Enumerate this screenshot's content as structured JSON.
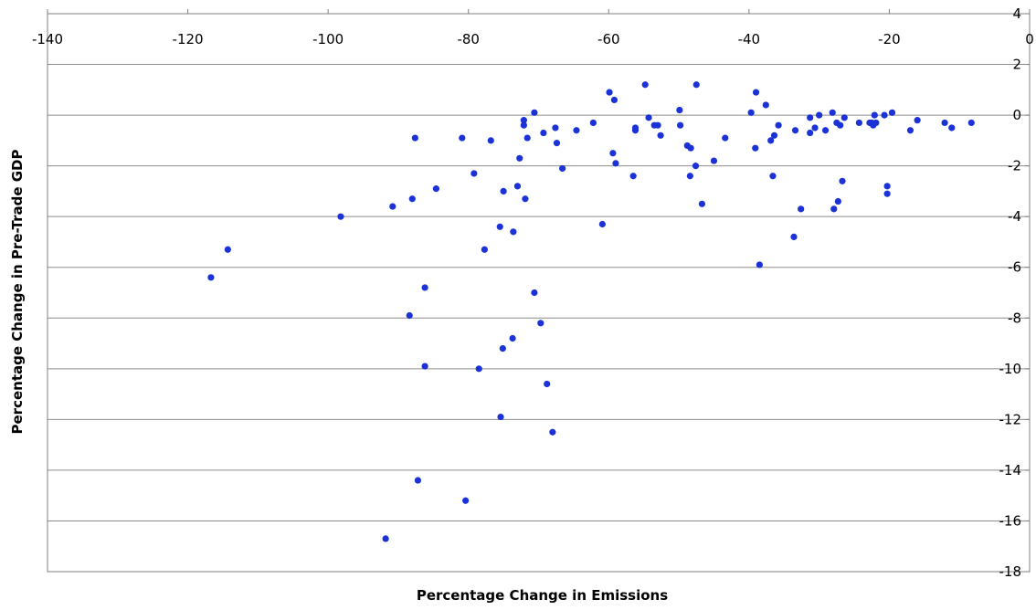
{
  "chart_data": {
    "type": "scatter",
    "title": "",
    "xlabel": "Percentage Change in Emissions",
    "ylabel": "Percentage Change in Pre-Trade GDP",
    "xlim": [
      -140,
      0
    ],
    "ylim": [
      -18,
      4
    ],
    "x_ticks": [
      -140,
      -120,
      -100,
      -80,
      -60,
      -40,
      -20,
      0
    ],
    "y_ticks": [
      4,
      2,
      0,
      -2,
      -4,
      -6,
      -8,
      -10,
      -12,
      -14,
      -16,
      -18
    ],
    "x_tick_labels": [
      "-140",
      "-120",
      "-100",
      "-80",
      "-60",
      "-40",
      "-20",
      "0"
    ],
    "y_tick_labels": [
      "4",
      "2",
      "0",
      "-2",
      "-4",
      "-6",
      "-8",
      "-10",
      "-12",
      "-14",
      "-16",
      "-18"
    ],
    "grid": "horizontal",
    "legend": "none",
    "marker_color": "#1a32d6",
    "series": [
      {
        "points": [
          [
            -116.7,
            -6.4
          ],
          [
            -114.3,
            -5.3
          ],
          [
            -98.2,
            -4.0
          ],
          [
            -91.8,
            -16.7
          ],
          [
            -90.8,
            -3.6
          ],
          [
            -88.4,
            -7.9
          ],
          [
            -88.0,
            -3.3
          ],
          [
            -87.6,
            -0.9
          ],
          [
            -87.2,
            -14.4
          ],
          [
            -86.2,
            -6.8
          ],
          [
            -86.2,
            -9.9
          ],
          [
            -84.6,
            -2.9
          ],
          [
            -80.4,
            -15.2
          ],
          [
            -80.9,
            -0.9
          ],
          [
            -79.2,
            -2.3
          ],
          [
            -78.5,
            -10.0
          ],
          [
            -77.7,
            -5.3
          ],
          [
            -76.8,
            -1.0
          ],
          [
            -75.4,
            -11.9
          ],
          [
            -75.5,
            -4.4
          ],
          [
            -75.1,
            -9.2
          ],
          [
            -75.0,
            -3.0
          ],
          [
            -73.7,
            -8.8
          ],
          [
            -73.6,
            -4.6
          ],
          [
            -73.0,
            -2.8
          ],
          [
            -72.7,
            -1.7
          ],
          [
            -72.1,
            -0.2
          ],
          [
            -72.1,
            -0.4
          ],
          [
            -71.9,
            -3.3
          ],
          [
            -71.6,
            -0.9
          ],
          [
            -70.6,
            0.1
          ],
          [
            -70.6,
            -7.0
          ],
          [
            -69.7,
            -8.2
          ],
          [
            -69.3,
            -0.7
          ],
          [
            -68.8,
            -10.6
          ],
          [
            -68.0,
            -12.5
          ],
          [
            -67.6,
            -0.5
          ],
          [
            -67.4,
            -1.1
          ],
          [
            -66.6,
            -2.1
          ],
          [
            -64.6,
            -0.6
          ],
          [
            -62.2,
            -0.3
          ],
          [
            -60.9,
            -4.3
          ],
          [
            -59.9,
            0.9
          ],
          [
            -59.4,
            -1.5
          ],
          [
            -59.2,
            0.6
          ],
          [
            -59.0,
            -1.9
          ],
          [
            -56.5,
            -2.4
          ],
          [
            -56.2,
            -0.5
          ],
          [
            -56.2,
            -0.6
          ],
          [
            -54.8,
            1.2
          ],
          [
            -54.3,
            -0.1
          ],
          [
            -53.5,
            -0.4
          ],
          [
            -53.0,
            -0.4
          ],
          [
            -52.6,
            -0.8
          ],
          [
            -49.9,
            0.2
          ],
          [
            -49.8,
            -0.4
          ],
          [
            -48.8,
            -1.2
          ],
          [
            -48.4,
            -2.4
          ],
          [
            -48.3,
            -1.3
          ],
          [
            -47.6,
            -2.0
          ],
          [
            -47.5,
            1.2
          ],
          [
            -46.7,
            -3.5
          ],
          [
            -45.0,
            -1.8
          ],
          [
            -43.4,
            -0.9
          ],
          [
            -39.7,
            0.1
          ],
          [
            -39.1,
            -1.3
          ],
          [
            -39.0,
            0.9
          ],
          [
            -38.5,
            -5.9
          ],
          [
            -37.6,
            0.4
          ],
          [
            -36.9,
            -1.0
          ],
          [
            -36.6,
            -2.4
          ],
          [
            -36.4,
            -0.8
          ],
          [
            -35.8,
            -0.4
          ],
          [
            -33.6,
            -4.8
          ],
          [
            -33.4,
            -0.6
          ],
          [
            -32.6,
            -3.7
          ],
          [
            -31.3,
            -0.1
          ],
          [
            -31.3,
            -0.7
          ],
          [
            -30.6,
            -0.5
          ],
          [
            -30.0,
            0.0
          ],
          [
            -29.1,
            -0.6
          ],
          [
            -28.1,
            0.1
          ],
          [
            -27.9,
            -3.7
          ],
          [
            -27.5,
            -0.3
          ],
          [
            -27.3,
            -3.4
          ],
          [
            -27.0,
            -0.4
          ],
          [
            -26.7,
            -2.6
          ],
          [
            -26.4,
            -0.1
          ],
          [
            -24.3,
            -0.3
          ],
          [
            -22.8,
            -0.3
          ],
          [
            -22.5,
            -0.3
          ],
          [
            -22.3,
            -0.4
          ],
          [
            -22.1,
            0.0
          ],
          [
            -21.9,
            -0.3
          ],
          [
            -20.7,
            0.0
          ],
          [
            -20.3,
            -2.8
          ],
          [
            -20.3,
            -3.1
          ],
          [
            -19.6,
            0.1
          ],
          [
            -17.0,
            -0.6
          ],
          [
            -16.0,
            -0.2
          ],
          [
            -12.1,
            -0.3
          ],
          [
            -11.1,
            -0.5
          ],
          [
            -8.3,
            -0.3
          ]
        ]
      }
    ]
  }
}
